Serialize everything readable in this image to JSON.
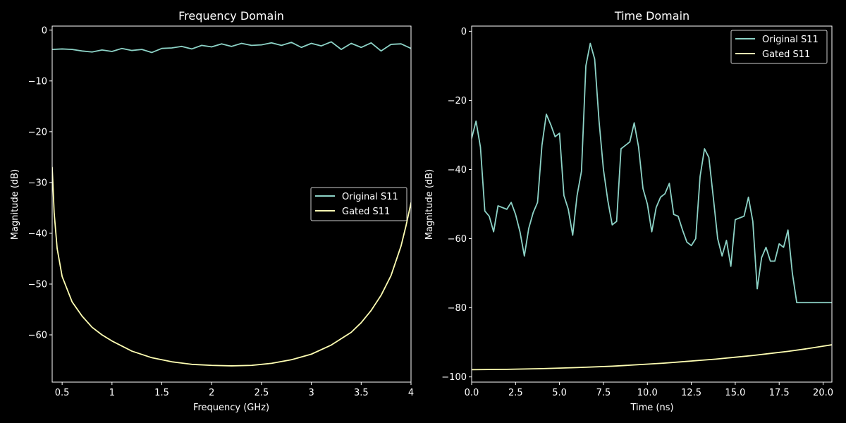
{
  "chart_data": [
    {
      "type": "line",
      "title": "Frequency Domain",
      "xlabel": "Frequency (GHz)",
      "ylabel": "Magnitude (dB)",
      "xlim": [
        0.4,
        4.0
      ],
      "ylim": [
        -69.3,
        0.8
      ],
      "xticks": [
        0.5,
        1,
        1.5,
        2,
        2.5,
        3,
        3.5,
        4
      ],
      "xtick_labels": [
        "0.5",
        "1",
        "1.5",
        "2",
        "2.5",
        "3",
        "3.5",
        "4"
      ],
      "yticks": [
        0,
        -10,
        -20,
        -30,
        -40,
        -50,
        -60
      ],
      "ytick_labels": [
        "0",
        "−10",
        "−20",
        "−30",
        "−40",
        "−50",
        "−60"
      ],
      "legend_position": "center-right",
      "grid": false,
      "series": [
        {
          "name": "Original S11",
          "color": "#8dd3c7",
          "x": [
            0.4,
            0.5,
            0.6,
            0.7,
            0.8,
            0.9,
            1.0,
            1.1,
            1.2,
            1.3,
            1.4,
            1.5,
            1.6,
            1.7,
            1.8,
            1.9,
            2.0,
            2.1,
            2.2,
            2.3,
            2.4,
            2.5,
            2.6,
            2.7,
            2.8,
            2.9,
            3.0,
            3.1,
            3.2,
            3.3,
            3.4,
            3.5,
            3.6,
            3.7,
            3.8,
            3.9,
            4.0
          ],
          "y": [
            -3.8,
            -3.7,
            -3.8,
            -4.1,
            -4.3,
            -3.9,
            -4.2,
            -3.6,
            -4.0,
            -3.8,
            -4.4,
            -3.6,
            -3.5,
            -3.2,
            -3.7,
            -3.0,
            -3.3,
            -2.7,
            -3.2,
            -2.6,
            -3.0,
            -2.9,
            -2.5,
            -3.0,
            -2.4,
            -3.4,
            -2.6,
            -3.1,
            -2.3,
            -3.8,
            -2.6,
            -3.4,
            -2.5,
            -4.1,
            -2.8,
            -2.7,
            -3.6
          ]
        },
        {
          "name": "Gated S11",
          "color": "#ffffb3",
          "x": [
            0.4,
            0.42,
            0.45,
            0.5,
            0.6,
            0.7,
            0.8,
            0.9,
            1.0,
            1.2,
            1.4,
            1.6,
            1.8,
            2.0,
            2.2,
            2.4,
            2.6,
            2.8,
            3.0,
            3.2,
            3.4,
            3.5,
            3.6,
            3.7,
            3.8,
            3.9,
            3.95,
            4.0
          ],
          "y": [
            -27,
            -36,
            -43,
            -48.5,
            -53.5,
            -56.3,
            -58.5,
            -60.0,
            -61.2,
            -63.2,
            -64.5,
            -65.3,
            -65.8,
            -66.0,
            -66.1,
            -66.0,
            -65.6,
            -64.9,
            -63.8,
            -62.0,
            -59.5,
            -57.6,
            -55.2,
            -52.2,
            -48.3,
            -42.5,
            -38.5,
            -34
          ]
        }
      ]
    },
    {
      "type": "line",
      "title": "Time Domain",
      "xlabel": "Time (ns)",
      "ylabel": "Magnitude (dB)",
      "xlim": [
        0.0,
        20.5
      ],
      "ylim": [
        -101.5,
        1.5
      ],
      "xticks": [
        0,
        2.5,
        5,
        7.5,
        10,
        12.5,
        15,
        17.5,
        20
      ],
      "xtick_labels": [
        "0.0",
        "2.5",
        "5.0",
        "7.5",
        "10.0",
        "12.5",
        "15.0",
        "17.5",
        "20.0"
      ],
      "yticks": [
        0,
        -20,
        -40,
        -60,
        -80,
        -100
      ],
      "ytick_labels": [
        "0",
        "−20",
        "−40",
        "−60",
        "−80",
        "−100"
      ],
      "legend_position": "upper-right",
      "grid": false,
      "series": [
        {
          "name": "Original S11",
          "color": "#8dd3c7",
          "x": [
            0.0,
            0.25,
            0.5,
            0.75,
            1.0,
            1.25,
            1.5,
            1.75,
            2.0,
            2.25,
            2.5,
            2.75,
            3.0,
            3.25,
            3.5,
            3.75,
            4.0,
            4.25,
            4.5,
            4.75,
            5.0,
            5.25,
            5.5,
            5.75,
            6.0,
            6.25,
            6.5,
            6.75,
            7.0,
            7.25,
            7.5,
            7.75,
            8.0,
            8.25,
            8.5,
            8.75,
            9.0,
            9.25,
            9.5,
            9.75,
            10.0,
            10.25,
            10.5,
            10.75,
            11.0,
            11.25,
            11.5,
            11.75,
            12.0,
            12.25,
            12.5,
            12.75,
            13.0,
            13.25,
            13.5,
            13.75,
            14.0,
            14.25,
            14.5,
            14.75,
            15.0,
            15.25,
            15.5,
            15.75,
            16.0,
            16.25,
            16.5,
            16.75,
            17.0,
            17.25,
            17.5,
            17.75,
            18.0,
            18.25,
            18.5,
            18.75,
            19.0,
            19.25,
            19.5,
            19.75,
            20.0,
            20.25,
            20.5
          ],
          "y": [
            -31,
            -26,
            -33.5,
            -52,
            -53.5,
            -58,
            -50.5,
            -51,
            -51.5,
            -49.5,
            -53,
            -58,
            -65,
            -57,
            -52.5,
            -49.5,
            -33,
            -24,
            -27,
            -30.5,
            -29.5,
            -47.5,
            -51.5,
            -59,
            -47.5,
            -40.5,
            -10,
            -3.5,
            -8,
            -26,
            -40,
            -49,
            -56,
            -55,
            -34,
            -33,
            -32,
            -26.5,
            -33.5,
            -45.5,
            -50,
            -58,
            -51,
            -48,
            -47,
            -44,
            -53,
            -53.5,
            -57.5,
            -61,
            -62,
            -60,
            -42,
            -34,
            -36.5,
            -48,
            -60,
            -65,
            -60.5,
            -68,
            -54.5,
            -54,
            -53.5,
            -48,
            -55,
            -74.5,
            -65.5,
            -62.5,
            -66.5,
            -66.5,
            -61.5,
            -62.5,
            -57.5,
            -70,
            -78.5,
            -78.5,
            -78.5,
            -78.5,
            -78.5,
            -78.5,
            -78.5,
            -78.5,
            -78.5
          ]
        },
        {
          "name": "Gated S11",
          "color": "#ffffb3",
          "x": [
            0,
            2,
            4,
            6,
            8,
            10,
            11,
            12,
            13,
            14,
            15,
            16,
            17,
            18,
            19,
            20,
            20.5
          ],
          "y": [
            -97.9,
            -97.8,
            -97.6,
            -97.3,
            -96.9,
            -96.3,
            -96.0,
            -95.6,
            -95.2,
            -94.8,
            -94.3,
            -93.8,
            -93.2,
            -92.6,
            -91.9,
            -91.1,
            -90.7
          ]
        }
      ]
    }
  ]
}
